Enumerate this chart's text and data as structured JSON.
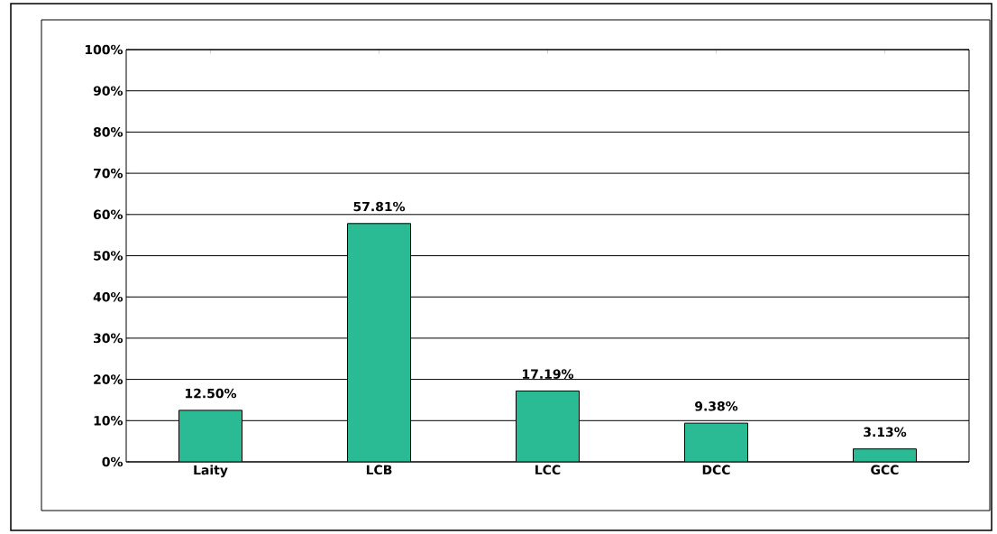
{
  "chart_data": {
    "type": "bar",
    "categories": [
      "Laity",
      "LCB",
      "LCC",
      "DCC",
      "GCC"
    ],
    "values": [
      12.5,
      57.81,
      17.19,
      9.38,
      3.13
    ],
    "value_labels": [
      "12.50%",
      "57.81%",
      "17.19%",
      "9.38%",
      "3.13%"
    ],
    "color": "#2abb94",
    "ylim": [
      0,
      100
    ],
    "yticks": [
      {
        "value": 0,
        "label": "0%"
      },
      {
        "value": 10,
        "label": "10%"
      },
      {
        "value": 20,
        "label": "20%"
      },
      {
        "value": 30,
        "label": "30%"
      },
      {
        "value": 40,
        "label": "40%"
      },
      {
        "value": 50,
        "label": "50%"
      },
      {
        "value": 60,
        "label": "60%"
      },
      {
        "value": 70,
        "label": "70%"
      },
      {
        "value": 80,
        "label": "80%"
      },
      {
        "value": 90,
        "label": "90%"
      },
      {
        "value": 100,
        "label": "100%"
      }
    ],
    "grid": "y"
  }
}
